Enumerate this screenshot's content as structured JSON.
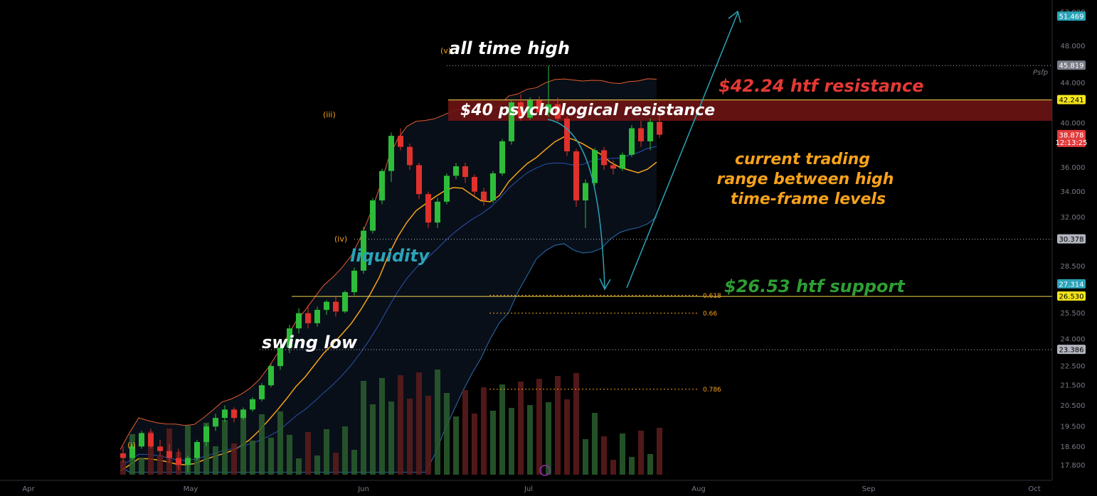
{
  "chart_data": {
    "type": "candlestick",
    "x_axis": {
      "ticks": [
        "Apr",
        "May",
        "Jun",
        "Jul",
        "Aug",
        "Sep",
        "Oct"
      ]
    },
    "y_axis": {
      "scale": "log",
      "ylim": [
        17.4,
        52.0
      ],
      "tick_labels": [
        "52.000",
        "48.000",
        "44.000",
        "40.000",
        "36.000",
        "34.000",
        "32.000",
        "28.500",
        "25.500",
        "24.000",
        "22.500",
        "21.500",
        "20.500",
        "19.500",
        "18.600",
        "17.800"
      ]
    },
    "price_tags": [
      {
        "label": "51.469",
        "value": 51.469,
        "color": "#2aa3b8",
        "text_color": "#ffffff"
      },
      {
        "label": "45.819",
        "value": 45.819,
        "color": "#787b86",
        "text_color": "#ffffff"
      },
      {
        "label": "42.241",
        "value": 42.241,
        "color": "#f5e51c",
        "text_color": "#000000"
      },
      {
        "label": "38.878",
        "sub_label": "12:13:25",
        "value": 38.878,
        "color": "#e23b3b",
        "text_color": "#ffffff"
      },
      {
        "label": "30.378",
        "value": 30.378,
        "color": "#b2b5be",
        "text_color": "#000000"
      },
      {
        "label": "27.314",
        "value": 27.314,
        "color": "#2aa3b8",
        "text_color": "#ffffff"
      },
      {
        "label": "26.530",
        "value": 26.53,
        "color": "#f5e51c",
        "text_color": "#000000"
      },
      {
        "label": "23.386",
        "value": 23.386,
        "color": "#b2b5be",
        "text_color": "#000000"
      }
    ],
    "fib_levels": [
      {
        "label": "0.618",
        "value": 26.6
      },
      {
        "label": "0.66",
        "value": 25.5
      },
      {
        "label": "0.786",
        "value": 21.3
      }
    ],
    "candles_approx": [
      {
        "open": 18.3,
        "high": 18.6,
        "low": 17.9,
        "close": 18.1
      },
      {
        "open": 18.1,
        "high": 18.7,
        "low": 18.0,
        "close": 18.6
      },
      {
        "open": 18.6,
        "high": 19.3,
        "low": 18.5,
        "close": 19.2
      },
      {
        "open": 19.2,
        "high": 19.4,
        "low": 18.5,
        "close": 18.6
      },
      {
        "open": 18.6,
        "high": 18.9,
        "low": 18.2,
        "close": 18.4
      },
      {
        "open": 18.4,
        "high": 18.7,
        "low": 17.9,
        "close": 18.1
      },
      {
        "open": 18.1,
        "high": 18.5,
        "low": 17.6,
        "close": 17.8
      },
      {
        "open": 17.8,
        "high": 18.2,
        "low": 17.5,
        "close": 18.1
      },
      {
        "open": 18.1,
        "high": 18.9,
        "low": 18.0,
        "close": 18.8
      },
      {
        "open": 18.8,
        "high": 19.6,
        "low": 18.6,
        "close": 19.5
      },
      {
        "open": 19.5,
        "high": 20.1,
        "low": 19.3,
        "close": 19.9
      },
      {
        "open": 19.9,
        "high": 20.5,
        "low": 19.7,
        "close": 20.3
      },
      {
        "open": 20.3,
        "high": 20.4,
        "low": 19.7,
        "close": 19.9
      },
      {
        "open": 19.9,
        "high": 20.4,
        "low": 19.8,
        "close": 20.3
      },
      {
        "open": 20.3,
        "high": 20.9,
        "low": 20.2,
        "close": 20.8
      },
      {
        "open": 20.8,
        "high": 21.6,
        "low": 20.7,
        "close": 21.5
      },
      {
        "open": 21.5,
        "high": 22.6,
        "low": 21.4,
        "close": 22.5
      },
      {
        "open": 22.5,
        "high": 23.6,
        "low": 22.3,
        "close": 23.5
      },
      {
        "open": 23.5,
        "high": 24.8,
        "low": 23.2,
        "close": 24.6
      },
      {
        "open": 24.6,
        "high": 25.8,
        "low": 24.3,
        "close": 25.5
      },
      {
        "open": 25.5,
        "high": 26.0,
        "low": 24.6,
        "close": 24.9
      },
      {
        "open": 24.9,
        "high": 25.9,
        "low": 24.7,
        "close": 25.7
      },
      {
        "open": 25.7,
        "high": 26.3,
        "low": 25.4,
        "close": 26.2
      },
      {
        "open": 26.2,
        "high": 26.5,
        "low": 25.3,
        "close": 25.6
      },
      {
        "open": 25.6,
        "high": 26.9,
        "low": 25.5,
        "close": 26.8
      },
      {
        "open": 26.8,
        "high": 28.4,
        "low": 26.6,
        "close": 28.2
      },
      {
        "open": 28.2,
        "high": 31.3,
        "low": 28.0,
        "close": 31.0
      },
      {
        "open": 31.0,
        "high": 33.5,
        "low": 30.8,
        "close": 33.3
      },
      {
        "open": 33.3,
        "high": 35.9,
        "low": 33.0,
        "close": 35.7
      },
      {
        "open": 35.7,
        "high": 39.1,
        "low": 34.8,
        "close": 38.8
      },
      {
        "open": 38.8,
        "high": 39.5,
        "low": 37.5,
        "close": 37.8
      },
      {
        "open": 37.8,
        "high": 38.1,
        "low": 35.8,
        "close": 36.2
      },
      {
        "open": 36.2,
        "high": 36.4,
        "low": 33.4,
        "close": 33.8
      },
      {
        "open": 33.8,
        "high": 34.0,
        "low": 31.2,
        "close": 31.6
      },
      {
        "open": 31.6,
        "high": 33.5,
        "low": 31.2,
        "close": 33.2
      },
      {
        "open": 33.2,
        "high": 35.5,
        "low": 33.0,
        "close": 35.3
      },
      {
        "open": 35.3,
        "high": 36.4,
        "low": 35.0,
        "close": 36.1
      },
      {
        "open": 36.1,
        "high": 36.4,
        "low": 34.7,
        "close": 35.2
      },
      {
        "open": 35.2,
        "high": 35.4,
        "low": 33.7,
        "close": 34.0
      },
      {
        "open": 34.0,
        "high": 34.3,
        "low": 32.9,
        "close": 33.3
      },
      {
        "open": 33.3,
        "high": 35.7,
        "low": 33.1,
        "close": 35.5
      },
      {
        "open": 35.5,
        "high": 38.5,
        "low": 35.3,
        "close": 38.3
      },
      {
        "open": 38.3,
        "high": 42.3,
        "low": 38.0,
        "close": 42.0
      },
      {
        "open": 42.0,
        "high": 42.8,
        "low": 40.2,
        "close": 40.5
      },
      {
        "open": 40.5,
        "high": 42.5,
        "low": 40.3,
        "close": 42.2
      },
      {
        "open": 42.2,
        "high": 42.6,
        "low": 40.8,
        "close": 41.0
      },
      {
        "open": 41.0,
        "high": 45.8,
        "low": 40.6,
        "close": 41.8
      },
      {
        "open": 41.8,
        "high": 42.5,
        "low": 40.1,
        "close": 40.4
      },
      {
        "open": 40.4,
        "high": 40.6,
        "low": 37.0,
        "close": 37.4
      },
      {
        "open": 37.4,
        "high": 37.6,
        "low": 32.8,
        "close": 33.3
      },
      {
        "open": 33.3,
        "high": 35.0,
        "low": 31.2,
        "close": 34.7
      },
      {
        "open": 34.7,
        "high": 37.7,
        "low": 34.5,
        "close": 37.5
      },
      {
        "open": 37.5,
        "high": 37.8,
        "low": 35.8,
        "close": 36.2
      },
      {
        "open": 36.2,
        "high": 36.6,
        "low": 35.4,
        "close": 35.9
      },
      {
        "open": 35.9,
        "high": 37.3,
        "low": 35.7,
        "close": 37.1
      },
      {
        "open": 37.1,
        "high": 39.8,
        "low": 36.9,
        "close": 39.5
      },
      {
        "open": 39.5,
        "high": 40.2,
        "low": 37.8,
        "close": 38.3
      },
      {
        "open": 38.3,
        "high": 40.4,
        "low": 37.5,
        "close": 40.1
      },
      {
        "open": 40.1,
        "high": 40.8,
        "low": 38.6,
        "close": 38.9
      }
    ],
    "annotations": [
      "(i)",
      "(iii)",
      "(iv)",
      "(v)",
      "Psfp"
    ]
  },
  "annotations": {
    "all_time_high": "all time high",
    "psych_resistance": "$40 psychological resistance",
    "htf_resistance": "$42.24 htf resistance",
    "trading_range": [
      "current trading",
      "range between high",
      "time-frame levels"
    ],
    "liquidity": "liquidity",
    "htf_support": "$26.53 htf support",
    "swing_low": "swing low"
  },
  "colors": {
    "up": "#2ebd3a",
    "down": "#e0312c",
    "resistance_zone": "#6e1414",
    "htf_resistance_text": "#e53935",
    "trading_range_text": "#f7a21b",
    "liquidity_text": "#2aa3b8",
    "support_text": "#2e9e33",
    "level_line": "#f2d74e",
    "arrow": "#2aa3b8"
  }
}
